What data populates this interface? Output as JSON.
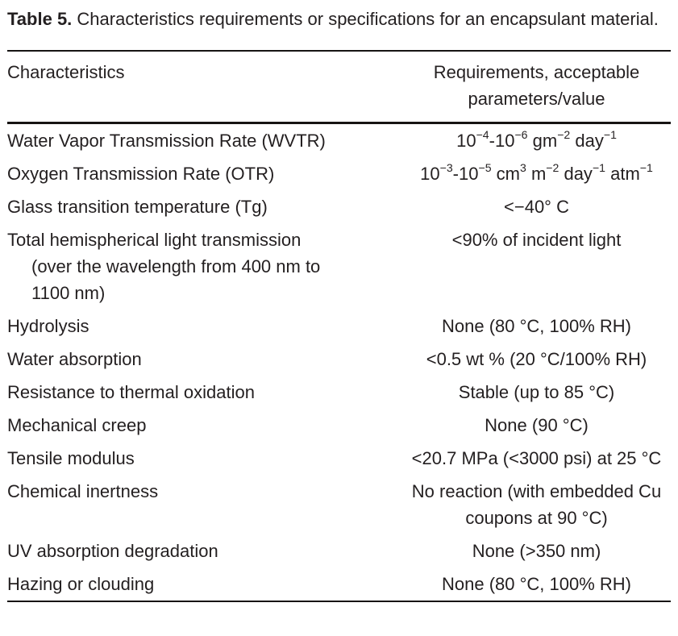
{
  "page": {
    "background": "#ffffff",
    "text_color": "#231f20",
    "rule_color": "#161413"
  },
  "caption": {
    "label": "Table 5.",
    "text": "Characteristics requirements or specifications for an encapsulant material."
  },
  "table": {
    "header": {
      "col1": "Characteristics",
      "col2": "Requirements, acceptable\nparameters/value"
    },
    "rows": [
      {
        "characteristic": [
          "Water Vapor Transmission Rate (WVTR)"
        ],
        "requirement": [
          "10^{−4}-10^{−6} gm^{−2} day^{−1}"
        ]
      },
      {
        "characteristic": [
          "Oxygen Transmission Rate (OTR)"
        ],
        "requirement": [
          "10^{−3}-10^{−5} cm^{3} m^{−2} day^{−1} atm^{−1}"
        ]
      },
      {
        "characteristic": [
          "Glass transition temperature (Tg)"
        ],
        "requirement": [
          "<−40° C"
        ]
      },
      {
        "characteristic": [
          "Total hemispherical light transmission",
          "(over the wavelength from 400 nm to",
          "1100 nm)"
        ],
        "requirement": [
          "<90% of incident light"
        ]
      },
      {
        "characteristic": [
          "Hydrolysis"
        ],
        "requirement": [
          "None (80 °C, 100% RH)"
        ]
      },
      {
        "characteristic": [
          "Water absorption"
        ],
        "requirement": [
          "<0.5 wt % (20 °C/100% RH)"
        ]
      },
      {
        "characteristic": [
          "Resistance to thermal oxidation"
        ],
        "requirement": [
          "Stable (up to 85 °C)"
        ]
      },
      {
        "characteristic": [
          "Mechanical creep"
        ],
        "requirement": [
          "None (90 °C)"
        ]
      },
      {
        "characteristic": [
          "Tensile modulus"
        ],
        "requirement": [
          "<20.7 MPa (<3000 psi) at 25 °C"
        ]
      },
      {
        "characteristic": [
          "Chemical inertness"
        ],
        "requirement": [
          "No reaction (with embedded Cu",
          "coupons at 90 °C)"
        ]
      },
      {
        "characteristic": [
          "UV absorption degradation"
        ],
        "requirement": [
          "None (>350 nm)"
        ]
      },
      {
        "characteristic": [
          "Hazing or clouding"
        ],
        "requirement": [
          "None (80 °C, 100% RH)"
        ]
      }
    ]
  }
}
